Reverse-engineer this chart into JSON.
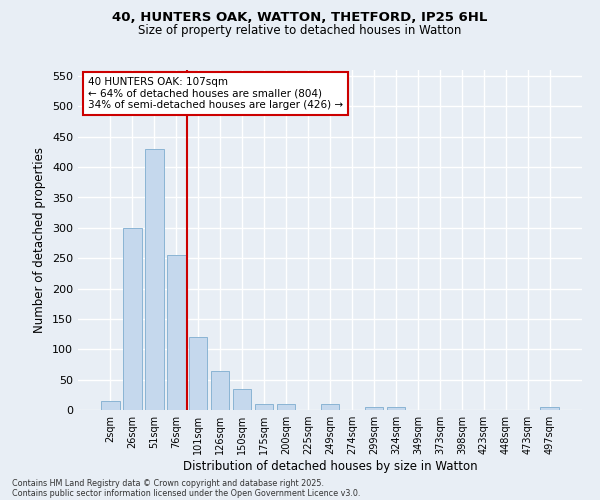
{
  "title1": "40, HUNTERS OAK, WATTON, THETFORD, IP25 6HL",
  "title2": "Size of property relative to detached houses in Watton",
  "xlabel": "Distribution of detached houses by size in Watton",
  "ylabel": "Number of detached properties",
  "categories": [
    "2sqm",
    "26sqm",
    "51sqm",
    "76sqm",
    "101sqm",
    "126sqm",
    "150sqm",
    "175sqm",
    "200sqm",
    "225sqm",
    "249sqm",
    "274sqm",
    "299sqm",
    "324sqm",
    "349sqm",
    "373sqm",
    "398sqm",
    "423sqm",
    "448sqm",
    "473sqm",
    "497sqm"
  ],
  "bar_heights": [
    15,
    300,
    430,
    255,
    120,
    65,
    35,
    10,
    10,
    0,
    10,
    0,
    5,
    5,
    0,
    0,
    0,
    0,
    0,
    0,
    5
  ],
  "bar_color": "#c5d8ed",
  "bar_edge_color": "#8ab4d4",
  "background_color": "#e8eef5",
  "grid_color": "#d0d8e4",
  "vline_color": "#cc0000",
  "annotation_text": "40 HUNTERS OAK: 107sqm\n← 64% of detached houses are smaller (804)\n34% of semi-detached houses are larger (426) →",
  "annotation_box_color": "#ffffff",
  "annotation_box_edge": "#cc0000",
  "ylim": [
    0,
    560
  ],
  "yticks": [
    0,
    50,
    100,
    150,
    200,
    250,
    300,
    350,
    400,
    450,
    500,
    550
  ],
  "footer1": "Contains HM Land Registry data © Crown copyright and database right 2025.",
  "footer2": "Contains public sector information licensed under the Open Government Licence v3.0."
}
